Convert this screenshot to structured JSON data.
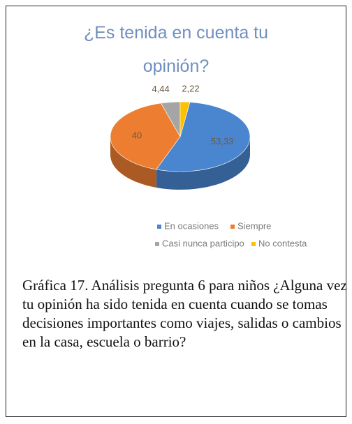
{
  "chart_data": {
    "type": "pie",
    "title": "¿Es tenida en cuenta tu opinión?",
    "categories": [
      "En ocasiones",
      "Siempre",
      "Casi nunca participo",
      "No contesta"
    ],
    "values": [
      53.33,
      40,
      4.44,
      2.22
    ],
    "value_labels": [
      "53,33",
      "40",
      "4,44",
      "2,22"
    ],
    "colors": [
      "#4a86d0",
      "#ed7d31",
      "#a5a5a5",
      "#ffc000"
    ],
    "legend": "bottom"
  },
  "caption": "Gráfica 17. Análisis pregunta 6 para niños ¿Alguna vez tu opinión ha sido tenida en cuenta cuando se tomas decisiones importantes como viajes, salidas o cambios en la casa, escuela o barrio?"
}
